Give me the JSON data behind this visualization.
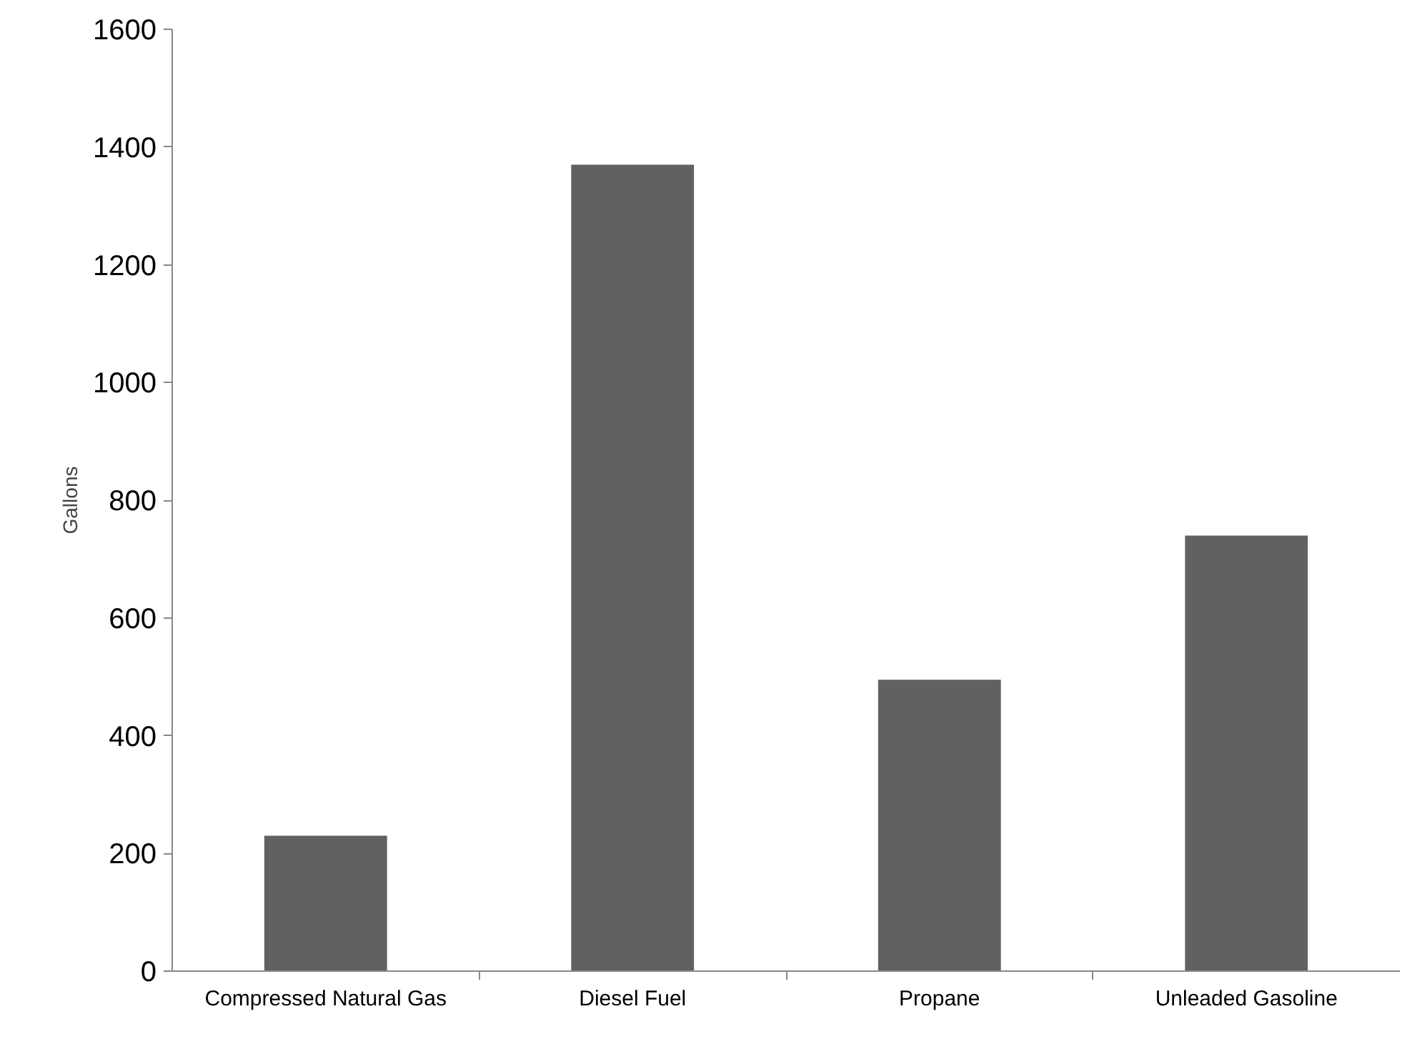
{
  "chart_data": {
    "type": "bar",
    "ylabel": "Gallons",
    "categories": [
      "Compressed Natural Gas",
      "Diesel Fuel",
      "Propane",
      "Unleaded Gasoline"
    ],
    "values": [
      230,
      1370,
      495,
      740
    ],
    "color": "#616161",
    "ylim": [
      0,
      1600
    ],
    "yticks": [
      0,
      200,
      400,
      600,
      800,
      1000,
      1200,
      1400,
      1600
    ],
    "grid": false
  }
}
